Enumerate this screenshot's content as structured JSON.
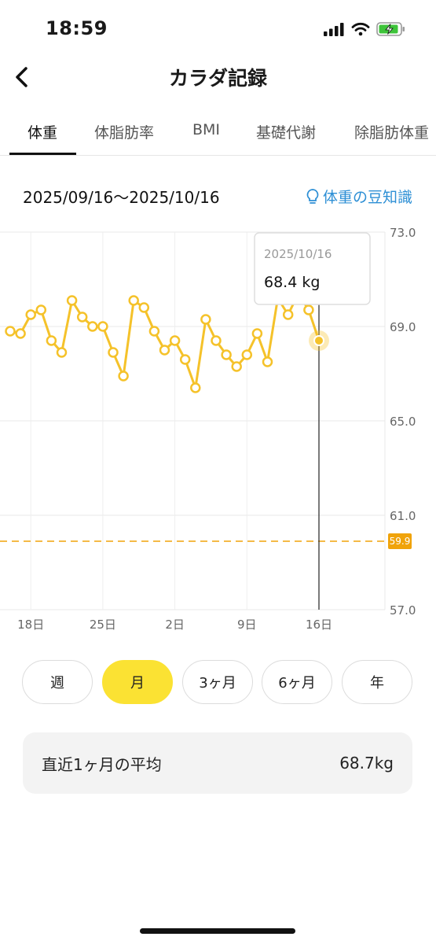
{
  "status_bar": {
    "time": "18:59"
  },
  "header": {
    "title": "カラダ記録",
    "back_icon": "chevron-left-icon"
  },
  "tabs": [
    {
      "label": "体重",
      "active": true
    },
    {
      "label": "体脂肪率",
      "active": false
    },
    {
      "label": "BMI",
      "active": false
    },
    {
      "label": "基礎代謝",
      "active": false
    },
    {
      "label": "除脂肪体重",
      "active": false
    }
  ],
  "range": {
    "text": "2025/09/16〜2025/10/16"
  },
  "tip": {
    "label": "体重の豆知識",
    "icon": "lightbulb-icon"
  },
  "tooltip": {
    "date": "2025/10/16",
    "value": "68.4 kg"
  },
  "target_label": "59.9",
  "colors": {
    "accent": "#f5c22a",
    "link": "#2d8fd5",
    "target": "#f0a30a",
    "active_button": "#fbe233"
  },
  "chart_data": {
    "type": "line",
    "ylim": [
      57.0,
      73.0
    ],
    "y_ticks": [
      "73.0",
      "69.0",
      "65.0",
      "61.0",
      "57.0"
    ],
    "x_ticks": [
      {
        "label": "18日",
        "day": 2
      },
      {
        "label": "25日",
        "day": 9
      },
      {
        "label": "2日",
        "day": 16
      },
      {
        "label": "9日",
        "day": 23
      },
      {
        "label": "16日",
        "day": 30
      }
    ],
    "target_value": 59.9,
    "series": [
      {
        "values": [
          [
            0,
            68.8
          ],
          [
            1,
            68.7
          ],
          [
            2,
            69.5
          ],
          [
            3,
            69.7
          ],
          [
            4,
            68.4
          ],
          [
            5,
            67.9
          ],
          [
            6,
            70.1
          ],
          [
            7,
            69.4
          ],
          [
            8,
            69.0
          ],
          [
            9,
            69.0
          ],
          [
            10,
            67.9
          ],
          [
            11,
            66.9
          ],
          [
            12,
            70.1
          ],
          [
            13,
            69.8
          ],
          [
            14,
            68.8
          ],
          [
            15,
            68.0
          ],
          [
            16,
            68.4
          ],
          [
            17,
            67.6
          ],
          [
            18,
            66.4
          ],
          [
            19,
            69.3
          ],
          [
            20,
            68.4
          ],
          [
            21,
            67.8
          ],
          [
            22,
            67.3
          ],
          [
            23,
            67.8
          ],
          [
            24,
            68.7
          ],
          [
            25,
            67.5
          ],
          [
            26,
            70.2
          ],
          [
            27,
            69.5
          ],
          [
            28,
            70.4
          ],
          [
            29,
            69.7
          ],
          [
            30,
            68.4
          ]
        ]
      }
    ]
  },
  "period_buttons": [
    {
      "label": "週",
      "active": false
    },
    {
      "label": "月",
      "active": true
    },
    {
      "label": "3ヶ月",
      "active": false
    },
    {
      "label": "6ヶ月",
      "active": false
    },
    {
      "label": "年",
      "active": false
    }
  ],
  "average": {
    "label": "直近1ヶ月の平均",
    "value": "68.7kg"
  }
}
